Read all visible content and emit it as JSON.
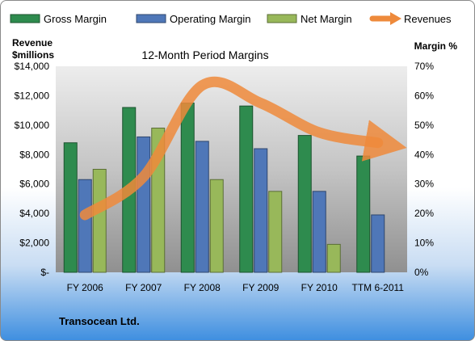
{
  "chart_data": {
    "type": "bar",
    "title": "12-Month Period Margins",
    "categories": [
      "FY 2006",
      "FY 2007",
      "FY 2008",
      "FY 2009",
      "FY 2010",
      "TTM 6-2011"
    ],
    "series": [
      {
        "name": "Gross Margin",
        "kind": "bar",
        "axis": "right",
        "values": [
          44,
          56,
          57.5,
          56.5,
          46.5,
          39.5
        ],
        "color": "#2e8b4e"
      },
      {
        "name": "Operating Margin",
        "kind": "bar",
        "axis": "right",
        "values": [
          31.5,
          46,
          44.5,
          42,
          27.5,
          19.5
        ],
        "color": "#4f77b8"
      },
      {
        "name": "Net Margin",
        "kind": "bar",
        "axis": "right",
        "values": [
          35,
          49,
          31.5,
          27.5,
          9.5,
          null
        ],
        "color": "#98b85a"
      },
      {
        "name": "Revenues",
        "kind": "line",
        "axis": "left",
        "values": [
          3900,
          6500,
          12700,
          11500,
          9500,
          8800
        ],
        "color": "#ee8a3b"
      }
    ],
    "ylabel_left": "Revenue $millions",
    "ylabel_right": "Margin %",
    "ylim_left": [
      0,
      14000
    ],
    "ylim_right": [
      0,
      70
    ],
    "yticks_left": [
      "$-",
      "$2,000",
      "$4,000",
      "$6,000",
      "$8,000",
      "$10,000",
      "$12,000",
      "$14,000"
    ],
    "yticks_right": [
      "0%",
      "10%",
      "20%",
      "30%",
      "40%",
      "50%",
      "60%",
      "70%"
    ],
    "legend_position": "top",
    "grid": false,
    "plot_background": "gray-gradient"
  },
  "footer": {
    "company": "Transocean Ltd."
  },
  "labels": {
    "rev_line1": "Revenue",
    "rev_line2": "$millions",
    "margin": "Margin %"
  }
}
